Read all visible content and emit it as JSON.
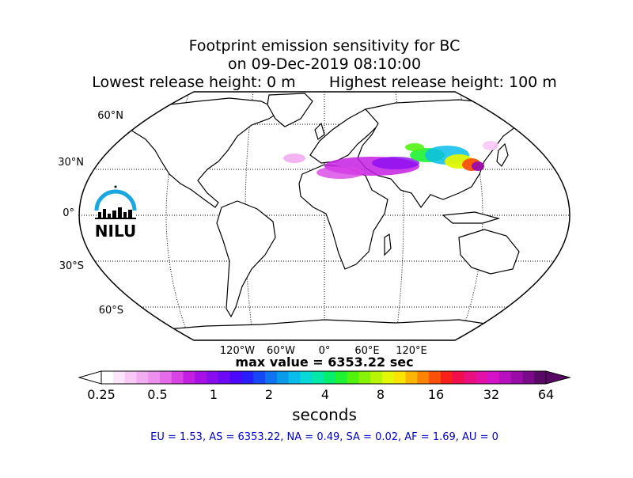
{
  "title": {
    "line1": "Footprint emission sensitivity for BC",
    "line2": "on 09-Dec-2019 08:10:00",
    "line3": "Lowest release height: 0 m       Highest release height: 100 m"
  },
  "map": {
    "projection": "Robinson",
    "lat_labels": [
      "60°N",
      "30°N",
      "0°",
      "30°S",
      "60°S"
    ],
    "lon_labels": [
      "120°W",
      "60°W",
      "0°",
      "60°E",
      "120°E"
    ],
    "logo_text": "NILU",
    "logo_color": "#1aa7e1"
  },
  "max_value_text": "max value = 6353.22 sec",
  "colorbar": {
    "ticks": [
      "0.25",
      "0.5",
      "1",
      "2",
      "4",
      "8",
      "16",
      "32",
      "64"
    ],
    "label": "seconds",
    "colors": [
      "#ffffff",
      "#fce4fb",
      "#f8c9f7",
      "#f2acf2",
      "#ec8fef",
      "#e46be9",
      "#d944e6",
      "#c41ee3",
      "#a610e6",
      "#8a0df0",
      "#6c0af6",
      "#4b08fb",
      "#2a1dfb",
      "#1549f6",
      "#0d73ef",
      "#0a9aec",
      "#09bdeb",
      "#06d9d8",
      "#04e8a8",
      "#05ee6c",
      "#1ff232",
      "#52f20f",
      "#88f208",
      "#b7f505",
      "#e2f804",
      "#fbe303",
      "#fbb504",
      "#fb8306",
      "#fb5009",
      "#f9201b",
      "#f00e4d",
      "#ea0f7e",
      "#e311a8",
      "#d412c8",
      "#b810c0",
      "#9a0ca8",
      "#7a0a8a",
      "#5a0866"
    ]
  },
  "footer": "EU = 1.53,  AS = 6353.22,  NA = 0.49,  SA = 0.02,  AF = 1.69,  AU = 0"
}
